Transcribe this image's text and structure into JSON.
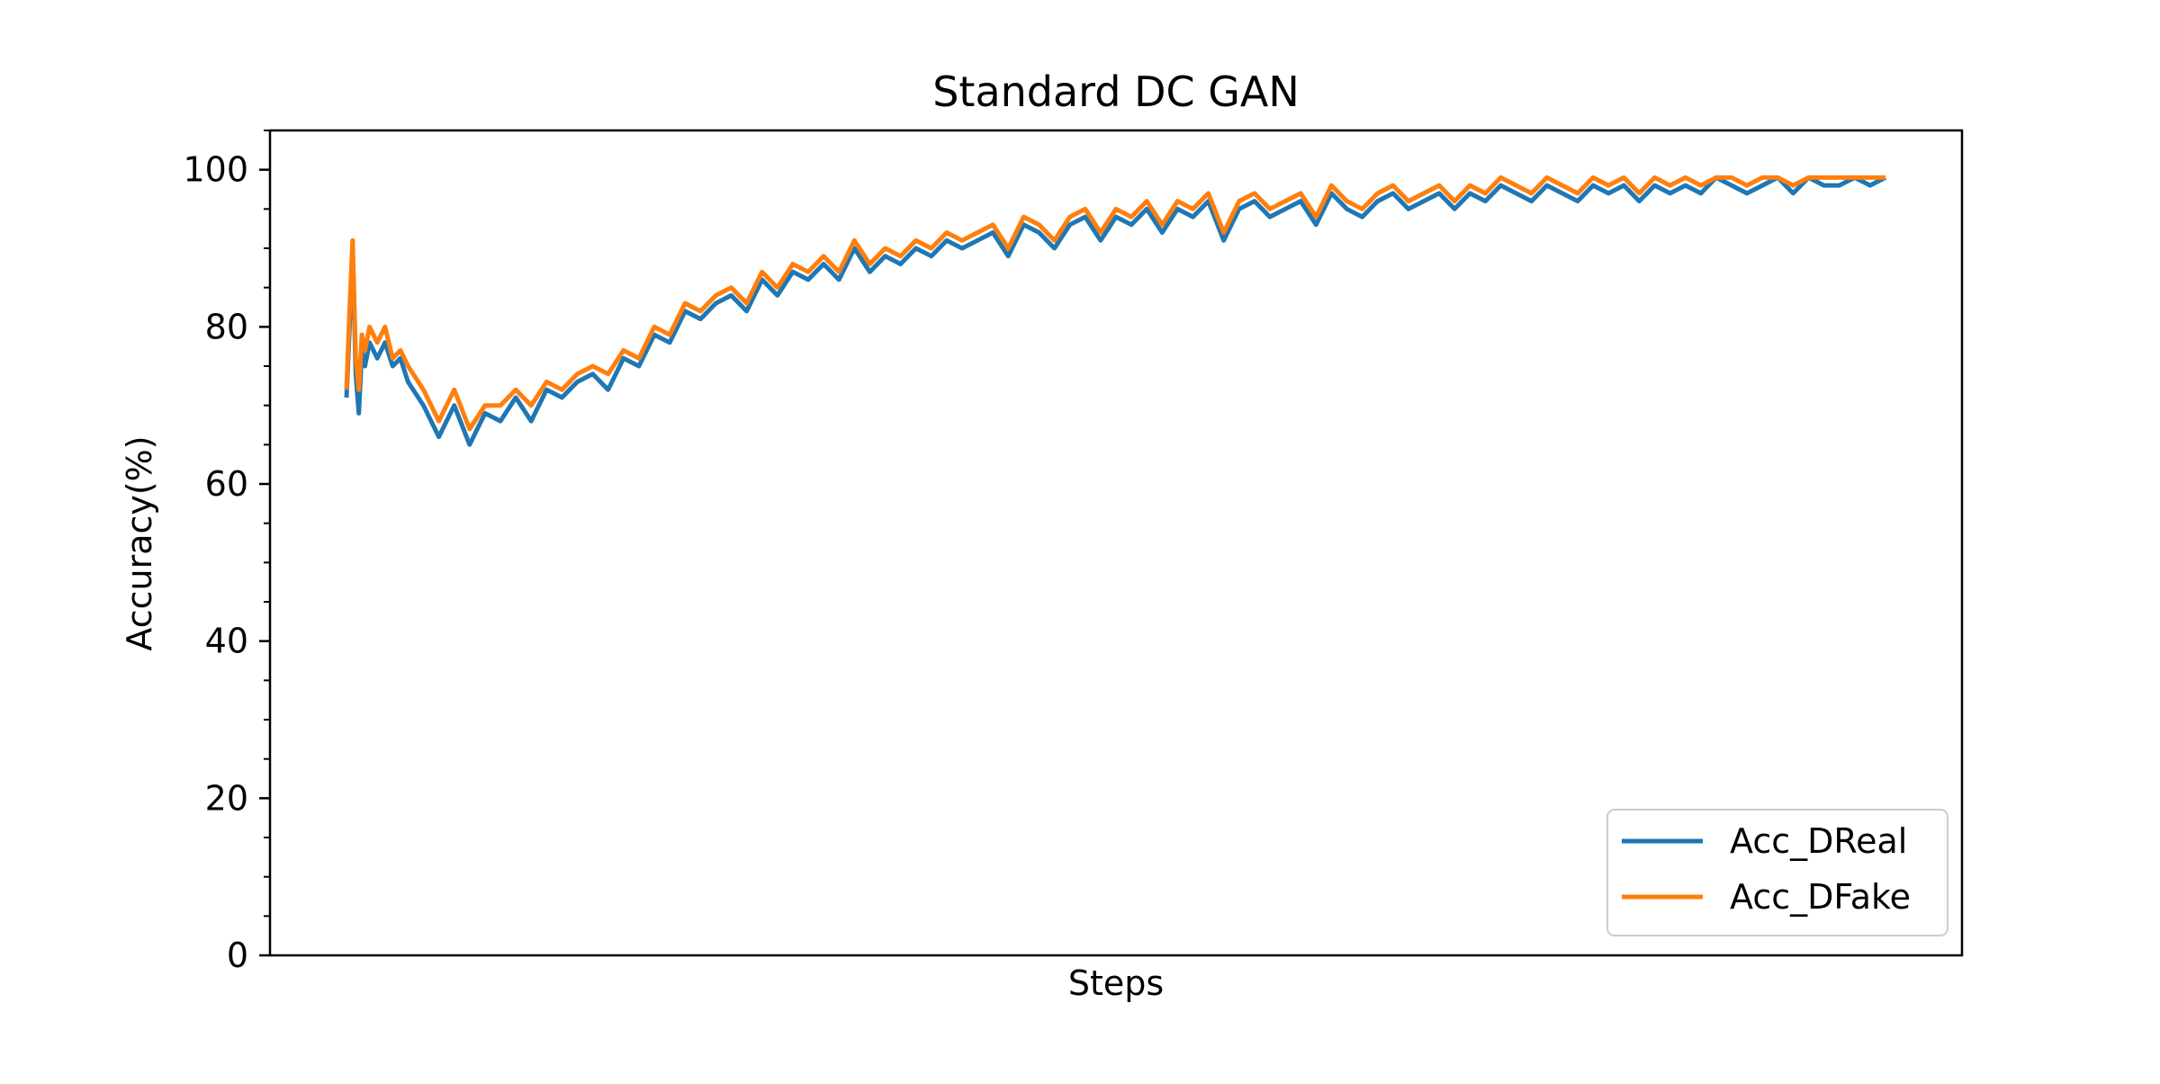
{
  "chart_data": {
    "type": "line",
    "title": "Standard DC GAN",
    "xlabel": "Steps",
    "ylabel": "Accuracy(%)",
    "ylim": [
      0,
      105
    ],
    "yticks": [
      0,
      20,
      40,
      60,
      80,
      100
    ],
    "x_tick_labels_shown": false,
    "grid": false,
    "legend_position": "lower-right",
    "x": [
      0,
      2,
      4,
      6,
      8,
      10,
      12,
      15,
      20,
      25,
      30,
      35,
      40,
      50,
      60,
      70,
      80,
      90,
      100,
      110,
      120,
      130,
      140,
      150,
      160,
      170,
      180,
      190,
      200,
      210,
      220,
      230,
      240,
      250,
      260,
      270,
      280,
      290,
      300,
      310,
      320,
      330,
      340,
      350,
      360,
      370,
      380,
      390,
      400,
      410,
      420,
      430,
      440,
      450,
      460,
      470,
      480,
      490,
      500,
      510,
      520,
      530,
      540,
      550,
      560,
      570,
      580,
      590,
      600,
      610,
      620,
      630,
      640,
      650,
      660,
      670,
      680,
      690,
      700,
      710,
      720,
      730,
      740,
      750,
      760,
      770,
      780,
      790,
      800,
      810,
      820,
      830,
      840,
      850,
      860,
      870,
      880,
      890,
      900,
      910,
      920,
      930,
      940,
      950,
      960,
      970,
      980,
      990,
      1000
    ],
    "series": [
      {
        "name": "Acc_DReal",
        "color": "#1f77b4",
        "values": [
          71,
          80,
          90,
          74,
          69,
          77,
          75,
          78,
          76,
          78,
          75,
          76,
          73,
          70,
          66,
          70,
          65,
          69,
          68,
          71,
          68,
          72,
          71,
          73,
          74,
          72,
          76,
          75,
          79,
          78,
          82,
          81,
          83,
          84,
          82,
          86,
          84,
          87,
          86,
          88,
          86,
          90,
          87,
          89,
          88,
          90,
          89,
          91,
          90,
          91,
          92,
          89,
          93,
          92,
          90,
          93,
          94,
          91,
          94,
          93,
          95,
          92,
          95,
          94,
          96,
          91,
          95,
          96,
          94,
          95,
          96,
          93,
          97,
          95,
          94,
          96,
          97,
          95,
          96,
          97,
          95,
          97,
          96,
          98,
          97,
          96,
          98,
          97,
          96,
          98,
          97,
          98,
          96,
          98,
          97,
          98,
          97,
          99,
          98,
          97,
          98,
          99,
          97,
          99,
          98,
          98,
          99,
          98,
          99
        ]
      },
      {
        "name": "Acc_DFake",
        "color": "#ff7f0e",
        "values": [
          72,
          82,
          91,
          76,
          72,
          79,
          77,
          80,
          78,
          80,
          76,
          77,
          75,
          72,
          68,
          72,
          67,
          70,
          70,
          72,
          70,
          73,
          72,
          74,
          75,
          74,
          77,
          76,
          80,
          79,
          83,
          82,
          84,
          85,
          83,
          87,
          85,
          88,
          87,
          89,
          87,
          91,
          88,
          90,
          89,
          91,
          90,
          92,
          91,
          92,
          93,
          90,
          94,
          93,
          91,
          94,
          95,
          92,
          95,
          94,
          96,
          93,
          96,
          95,
          97,
          92,
          96,
          97,
          95,
          96,
          97,
          94,
          98,
          96,
          95,
          97,
          98,
          96,
          97,
          98,
          96,
          98,
          97,
          99,
          98,
          97,
          99,
          98,
          97,
          99,
          98,
          99,
          97,
          99,
          98,
          99,
          98,
          99,
          99,
          98,
          99,
          99,
          98,
          99,
          99,
          99,
          99,
          99,
          99
        ]
      }
    ]
  }
}
